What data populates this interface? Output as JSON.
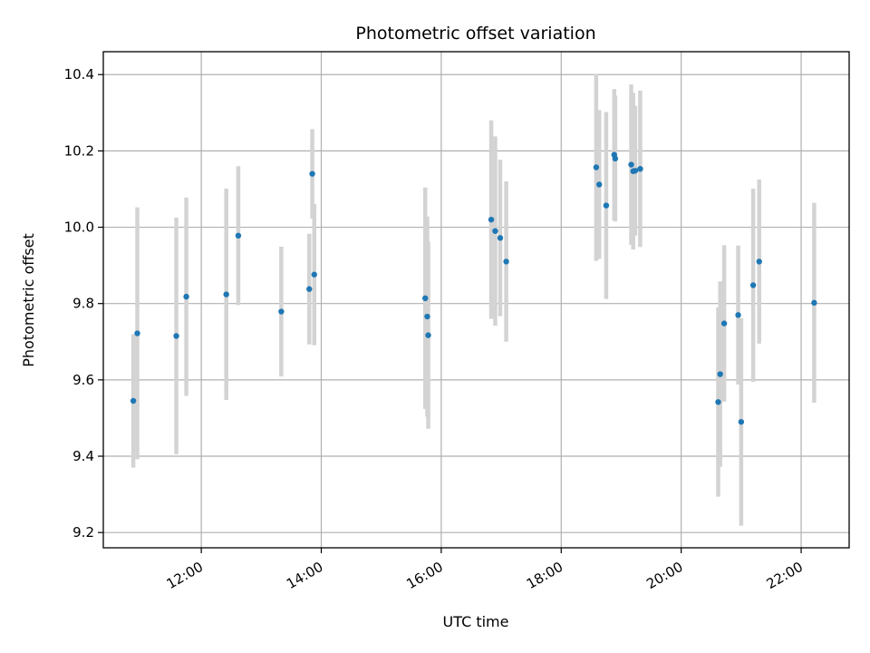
{
  "chart_data": {
    "type": "scatter",
    "title": "Photometric offset variation",
    "xlabel": "UTC time",
    "ylabel": "Photometric offset",
    "x_ticks": [
      "12:00",
      "14:00",
      "16:00",
      "18:00",
      "20:00",
      "22:00"
    ],
    "y_ticks": [
      "9.2",
      "9.4",
      "9.6",
      "9.8",
      "10.0",
      "10.2",
      "10.4"
    ],
    "xlim": [
      "10:22",
      "22:48"
    ],
    "ylim": [
      9.16,
      10.46
    ],
    "grid": true,
    "colors": {
      "point": "#1f77b4",
      "errorbar": "#d3d3d3",
      "grid": "#b0b0b0"
    },
    "series": [
      {
        "points": [
          {
            "x": "10:52",
            "y": 9.545,
            "yerr": 0.175
          },
          {
            "x": "10:56",
            "y": 9.722,
            "yerr": 0.33
          },
          {
            "x": "11:35",
            "y": 9.715,
            "yerr": 0.31
          },
          {
            "x": "11:45",
            "y": 9.818,
            "yerr": 0.26
          },
          {
            "x": "12:25",
            "y": 9.824,
            "yerr": 0.277
          },
          {
            "x": "12:37",
            "y": 9.978,
            "yerr": 0.182
          },
          {
            "x": "13:20",
            "y": 9.779,
            "yerr": 0.17
          },
          {
            "x": "13:48",
            "y": 9.838,
            "yerr": 0.145
          },
          {
            "x": "13:51",
            "y": 10.14,
            "yerr": 0.117
          },
          {
            "x": "13:53",
            "y": 9.876,
            "yerr": 0.185
          },
          {
            "x": "15:44",
            "y": 9.814,
            "yerr": 0.29
          },
          {
            "x": "15:46",
            "y": 9.766,
            "yerr": 0.262
          },
          {
            "x": "15:47",
            "y": 9.717,
            "yerr": 0.245
          },
          {
            "x": "16:50",
            "y": 10.02,
            "yerr": 0.26
          },
          {
            "x": "16:54",
            "y": 9.99,
            "yerr": 0.248
          },
          {
            "x": "16:59",
            "y": 9.972,
            "yerr": 0.205
          },
          {
            "x": "17:05",
            "y": 9.91,
            "yerr": 0.21
          },
          {
            "x": "18:35",
            "y": 10.157,
            "yerr": 0.245
          },
          {
            "x": "18:38",
            "y": 10.112,
            "yerr": 0.195
          },
          {
            "x": "18:45",
            "y": 10.057,
            "yerr": 0.245
          },
          {
            "x": "18:53",
            "y": 10.19,
            "yerr": 0.172
          },
          {
            "x": "18:54",
            "y": 10.18,
            "yerr": 0.165
          },
          {
            "x": "19:10",
            "y": 10.164,
            "yerr": 0.21
          },
          {
            "x": "19:12",
            "y": 10.147,
            "yerr": 0.205
          },
          {
            "x": "19:14",
            "y": 10.148,
            "yerr": 0.17
          },
          {
            "x": "19:19",
            "y": 10.153,
            "yerr": 0.205
          },
          {
            "x": "20:37",
            "y": 9.542,
            "yerr": 0.248
          },
          {
            "x": "20:39",
            "y": 9.615,
            "yerr": 0.243
          },
          {
            "x": "20:43",
            "y": 9.748,
            "yerr": 0.205
          },
          {
            "x": "20:57",
            "y": 9.77,
            "yerr": 0.182
          },
          {
            "x": "21:00",
            "y": 9.49,
            "yerr": 0.272
          },
          {
            "x": "21:12",
            "y": 9.848,
            "yerr": 0.253
          },
          {
            "x": "21:18",
            "y": 9.91,
            "yerr": 0.215
          },
          {
            "x": "22:13",
            "y": 9.802,
            "yerr": 0.262
          }
        ]
      }
    ]
  }
}
